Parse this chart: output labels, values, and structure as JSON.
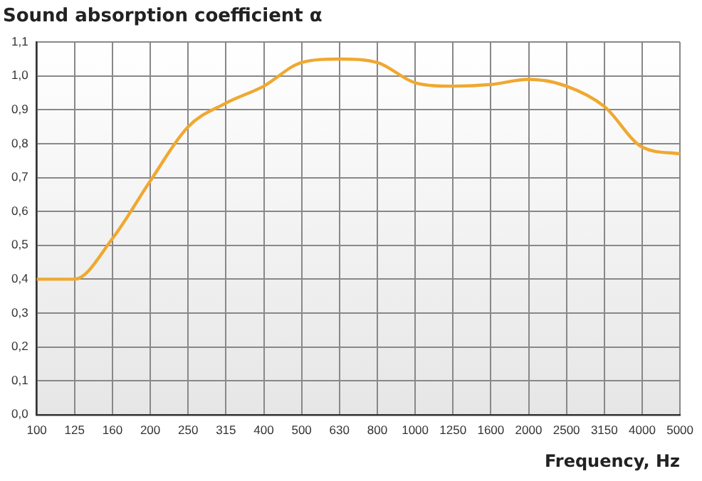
{
  "chart_data": {
    "type": "line",
    "title": "Sound absorption coefficient α",
    "xlabel": "Frequency, Hz",
    "categories": [
      "100",
      "125",
      "160",
      "200",
      "250",
      "315",
      "400",
      "500",
      "630",
      "800",
      "1000",
      "1250",
      "1600",
      "2000",
      "2500",
      "3150",
      "4000",
      "5000"
    ],
    "series": [
      {
        "color": "#f0a830",
        "values": [
          0.4,
          0.4,
          0.52,
          0.69,
          0.85,
          0.92,
          0.97,
          1.04,
          1.05,
          1.04,
          0.98,
          0.97,
          0.975,
          0.99,
          0.97,
          0.91,
          0.79,
          0.77
        ]
      }
    ],
    "ylim": [
      0,
      1.1
    ],
    "yticks": [
      {
        "value": 0,
        "label": "0,0"
      },
      {
        "value": 0.1,
        "label": "0,1"
      },
      {
        "value": 0.2,
        "label": "0,2"
      },
      {
        "value": 0.3,
        "label": "0,3"
      },
      {
        "value": 0.4,
        "label": "0,4"
      },
      {
        "value": 0.5,
        "label": "0,5"
      },
      {
        "value": 0.6,
        "label": "0,6"
      },
      {
        "value": 0.7,
        "label": "0,7"
      },
      {
        "value": 0.8,
        "label": "0,8"
      },
      {
        "value": 0.9,
        "label": "0,9"
      },
      {
        "value": 1.0,
        "label": "1,0"
      },
      {
        "value": 1.1,
        "label": "1,1"
      }
    ],
    "grid": true,
    "legend": false,
    "marker": "none",
    "line_style": "solid"
  }
}
